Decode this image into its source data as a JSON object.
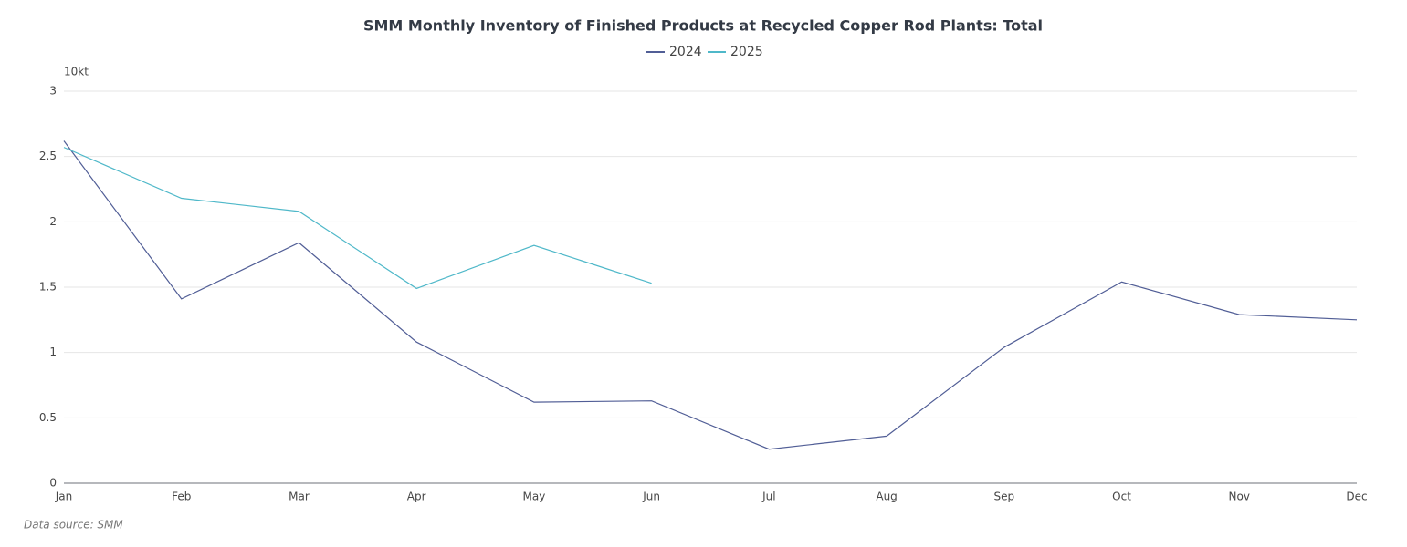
{
  "chart_data": {
    "type": "line",
    "title": "SMM Monthly Inventory of Finished Products at Recycled Copper Rod Plants: Total",
    "y_unit": "10kt",
    "source": "Data source:  SMM",
    "categories": [
      "Jan",
      "Feb",
      "Mar",
      "Apr",
      "May",
      "Jun",
      "Jul",
      "Aug",
      "Sep",
      "Oct",
      "Nov",
      "Dec"
    ],
    "series": [
      {
        "name": "2024",
        "color": "#515e96",
        "values": [
          2.62,
          1.41,
          1.84,
          1.08,
          0.62,
          0.63,
          0.26,
          0.36,
          1.04,
          1.54,
          1.29,
          1.25
        ]
      },
      {
        "name": "2025",
        "color": "#4fb8c9",
        "values": [
          2.57,
          2.18,
          2.08,
          1.49,
          1.82,
          1.53,
          null,
          null,
          null,
          null,
          null,
          null
        ]
      }
    ],
    "ylim": [
      0,
      3
    ],
    "yticks": [
      0,
      0.5,
      1,
      1.5,
      2,
      2.5,
      3
    ],
    "grid": true
  }
}
